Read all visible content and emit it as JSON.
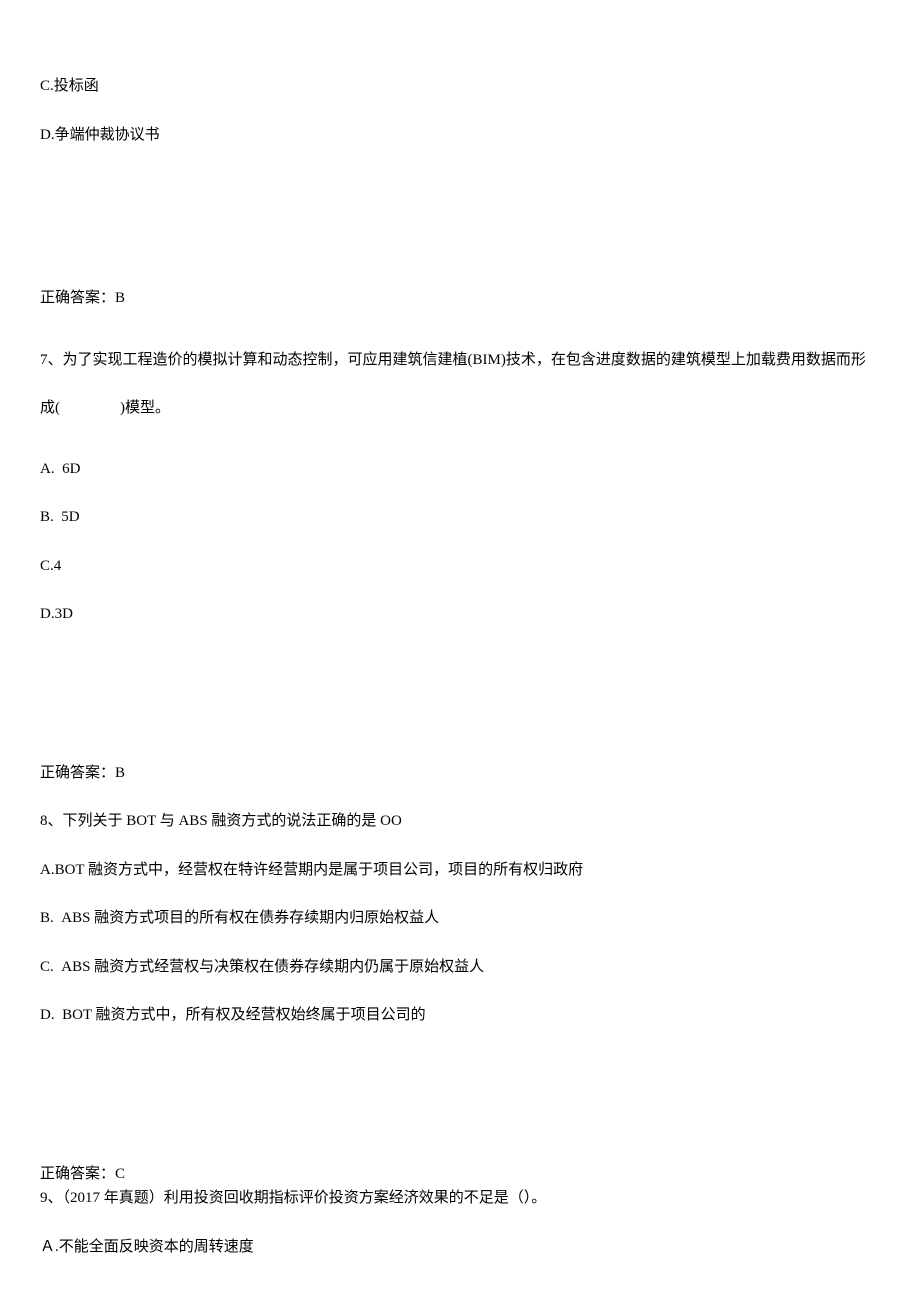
{
  "q6_remaining": {
    "option_c": "C.投标函",
    "option_d": "D.争端仲裁协议书",
    "answer": "正确答案：B"
  },
  "q7": {
    "text": "7、为了实现工程造价的模拟计算和动态控制，可应用建筑信建植(BIM)技术，在包含进度数据的建筑模型上加载费用数据而形成(　　　　)模型。",
    "option_a": "A.  6D",
    "option_b": "B.  5D",
    "option_c": "C.4",
    "option_d": "D.3D",
    "answer": "正确答案：B"
  },
  "q8": {
    "text": "8、下列关于 BOT 与 ABS 融资方式的说法正确的是 OO",
    "option_a": "A.BOT 融资方式中，经营权在特许经营期内是属于项目公司，项目的所有权归政府",
    "option_b": "B.  ABS 融资方式项目的所有权在债券存续期内归原始权益人",
    "option_c": "C.  ABS 融资方式经营权与决策权在债券存续期内仍属于原始权益人",
    "option_d": "D.  BOT 融资方式中，所有权及经营权始终属于项目公司的",
    "answer": "正确答案：C"
  },
  "q9": {
    "text": "9、（2017 年真题）利用投资回收期指标评价投资方案经济效果的不足是（）。",
    "option_a": "Ａ.不能全面反映资本的周转速度"
  }
}
